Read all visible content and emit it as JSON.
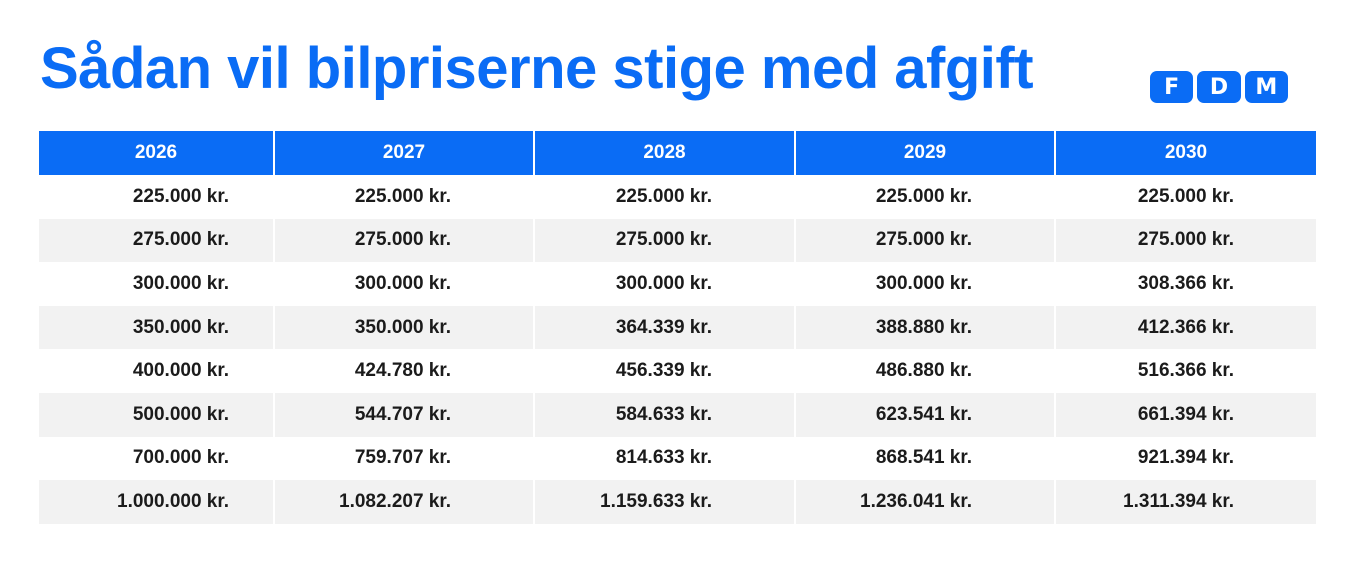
{
  "title": "Sådan vil bilpriserne stige med afgift",
  "logo": {
    "text": "FDM",
    "letters": [
      "F",
      "D",
      "M"
    ],
    "color": "#0a6cf5"
  },
  "colors": {
    "accent": "#0a6cf5",
    "row_alt": "#f2f2f2",
    "text": "#1b1b1b"
  },
  "chart_data": {
    "type": "table",
    "title": "Sådan vil bilpriserne stige med afgift",
    "columns": [
      "2026",
      "2027",
      "2028",
      "2029",
      "2030"
    ],
    "rows": [
      [
        "225.000 kr.",
        "225.000 kr.",
        "225.000 kr.",
        "225.000 kr.",
        "225.000 kr."
      ],
      [
        "275.000 kr.",
        "275.000 kr.",
        "275.000 kr.",
        "275.000 kr.",
        "275.000 kr."
      ],
      [
        "300.000 kr.",
        "300.000 kr.",
        "300.000 kr.",
        "300.000 kr.",
        "308.366 kr."
      ],
      [
        "350.000 kr.",
        "350.000 kr.",
        "364.339 kr.",
        "388.880 kr.",
        "412.366 kr."
      ],
      [
        "400.000 kr.",
        "424.780 kr.",
        "456.339 kr.",
        "486.880 kr.",
        "516.366 kr."
      ],
      [
        "500.000 kr.",
        "544.707 kr.",
        "584.633 kr.",
        "623.541 kr.",
        "661.394 kr."
      ],
      [
        "700.000 kr.",
        "759.707 kr.",
        "814.633 kr.",
        "868.541 kr.",
        "921.394 kr."
      ],
      [
        "1.000.000 kr.",
        "1.082.207 kr.",
        "1.159.633 kr.",
        "1.236.041 kr.",
        "1.311.394 kr."
      ]
    ]
  }
}
